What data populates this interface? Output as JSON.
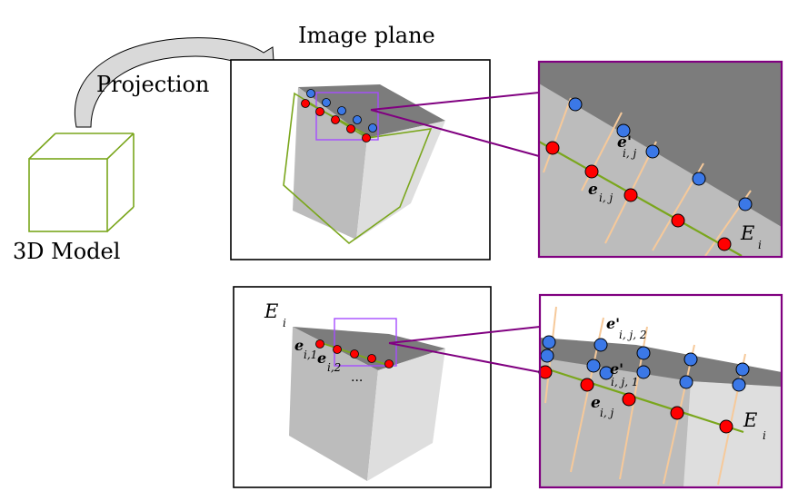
{
  "labels": {
    "image_plane": "Image plane",
    "projection": "Projection",
    "model": "3D Model",
    "edge_top": "E",
    "edge_top_sub": "i",
    "edge_bottom_left": "E",
    "edge_bottom_left_sub": "i",
    "edge_bottom_right": "E",
    "edge_bottom_right_sub": "i",
    "e_prime_top": "e'",
    "e_prime_top_sub": "i, j",
    "e_top": "e",
    "e_top_sub": "i, j",
    "e1": "e",
    "e1_sub": "i,1",
    "e2": "e",
    "e2_sub": "i,2",
    "dots": "...",
    "e_prime_2": "e'",
    "e_prime_2_sub": "i, j, 2",
    "e_prime_1": "e'",
    "e_prime_1_sub": "i, j, 1",
    "e_bottom": "e",
    "e_bottom_sub": "i, j"
  },
  "colors": {
    "model_edge": "#7aa61c",
    "zoom_box": "#800080",
    "selection_box": "#a64dff",
    "red_point": "#ff0000",
    "blue_point": "#3b78e7",
    "search_line": "#f6c99a",
    "face_dark": "#7c7c7c",
    "face_mid": "#bcbcbc",
    "face_light": "#dedede"
  }
}
